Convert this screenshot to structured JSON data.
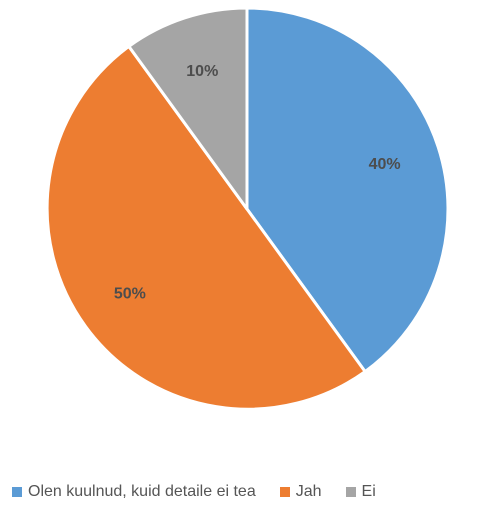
{
  "chart_data": {
    "type": "pie",
    "title": "",
    "categories": [
      "Olen kuulnud, kuid detaile ei tea",
      "Jah",
      "Ei"
    ],
    "values": [
      40,
      50,
      10
    ],
    "labels": [
      "40%",
      "50%",
      "10%"
    ],
    "colors": [
      "#5B9BD5",
      "#ED7D31",
      "#A5A5A5"
    ],
    "start_angle": "12 o'clock, clockwise",
    "legend_position": "bottom"
  }
}
